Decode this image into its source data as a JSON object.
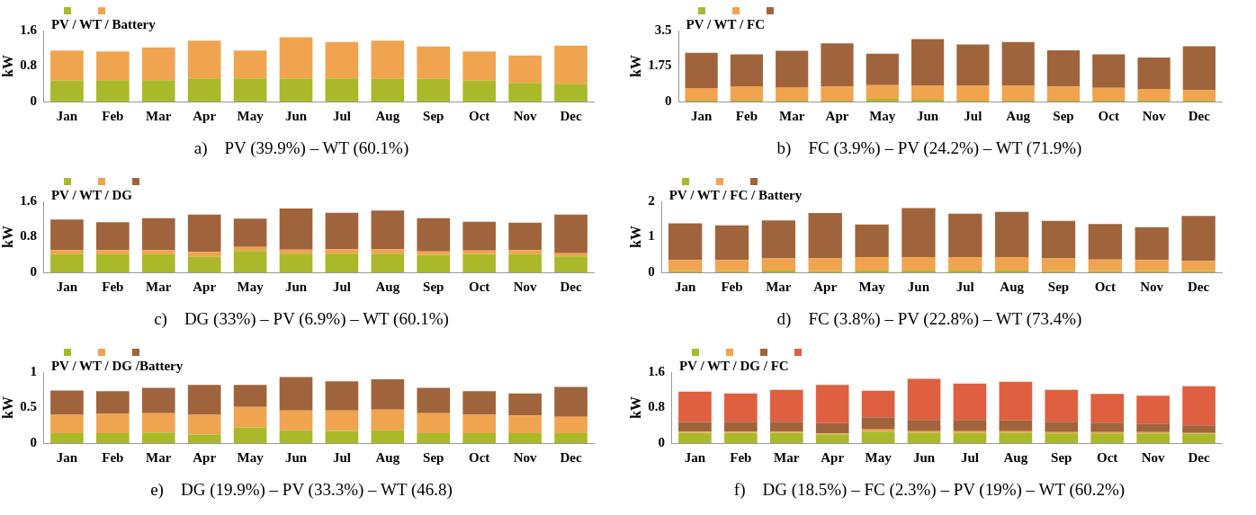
{
  "chart_data": [
    {
      "type": "bar",
      "stacked": true,
      "legend_title": "PV / WT / Battery",
      "ylabel": "kW",
      "ylim": [
        0,
        1.6
      ],
      "yticks": [
        0,
        0.8,
        1.6
      ],
      "annotations": [
        "a)    PV (39.9%) – WT (60.1%)"
      ],
      "categories": [
        "Jan",
        "Feb",
        "Mar",
        "Apr",
        "May",
        "Jun",
        "Jul",
        "Aug",
        "Sep",
        "Oct",
        "Nov",
        "Dec"
      ],
      "series": [
        {
          "color": "#a9b92a",
          "values": [
            0.47,
            0.48,
            0.48,
            0.52,
            0.52,
            0.52,
            0.52,
            0.51,
            0.51,
            0.47,
            0.42,
            0.4
          ]
        },
        {
          "color": "#f0a44f",
          "values": [
            0.68,
            0.65,
            0.74,
            0.85,
            0.63,
            0.93,
            0.82,
            0.86,
            0.73,
            0.66,
            0.62,
            0.86
          ]
        }
      ]
    },
    {
      "type": "bar",
      "stacked": true,
      "legend_title": "PV / WT / FC",
      "ylabel": "kW",
      "ylim": [
        0,
        3.5
      ],
      "yticks": [
        0,
        1.75,
        3.5
      ],
      "annotations": [
        "b)    FC (3.9%) – PV (24.2%) – WT (71.9%)"
      ],
      "categories": [
        "Jan",
        "Feb",
        "Mar",
        "Apr",
        "May",
        "Jun",
        "Jul",
        "Aug",
        "Sep",
        "Oct",
        "Nov",
        "Dec"
      ],
      "series": [
        {
          "color": "#a9b92a",
          "values": [
            0.04,
            0.04,
            0.04,
            0.04,
            0.13,
            0.09,
            0.04,
            0.04,
            0.04,
            0.04,
            0.04,
            0.04
          ]
        },
        {
          "color": "#f0a44f",
          "values": [
            0.63,
            0.71,
            0.67,
            0.7,
            0.68,
            0.68,
            0.73,
            0.73,
            0.7,
            0.64,
            0.58,
            0.53
          ]
        },
        {
          "color": "#a0643c",
          "values": [
            1.73,
            1.58,
            1.79,
            2.13,
            1.55,
            2.31,
            2.04,
            2.16,
            1.79,
            1.65,
            1.55,
            2.16
          ]
        }
      ]
    },
    {
      "type": "bar",
      "stacked": true,
      "legend_title": "PV / WT / DG",
      "ylabel": "kW",
      "ylim": [
        0,
        1.6
      ],
      "yticks": [
        0,
        0.8,
        1.6
      ],
      "annotations": [
        "c)    DG (33%) – PV (6.9%) – WT (60.1%)"
      ],
      "categories": [
        "Jan",
        "Feb",
        "Mar",
        "Apr",
        "May",
        "Jun",
        "Jul",
        "Aug",
        "Sep",
        "Oct",
        "Nov",
        "Dec"
      ],
      "series": [
        {
          "color": "#a9b92a",
          "values": [
            0.41,
            0.41,
            0.41,
            0.35,
            0.48,
            0.42,
            0.42,
            0.42,
            0.39,
            0.41,
            0.41,
            0.36
          ]
        },
        {
          "color": "#f0a44f",
          "values": [
            0.09,
            0.09,
            0.09,
            0.11,
            0.09,
            0.09,
            0.1,
            0.1,
            0.08,
            0.08,
            0.09,
            0.07
          ]
        },
        {
          "color": "#a0643c",
          "values": [
            0.69,
            0.63,
            0.72,
            0.84,
            0.64,
            0.93,
            0.82,
            0.87,
            0.75,
            0.65,
            0.62,
            0.87
          ]
        }
      ]
    },
    {
      "type": "bar",
      "stacked": true,
      "legend_title": "PV / WT / FC / Battery",
      "ylabel": "kW",
      "ylim": [
        0,
        2
      ],
      "yticks": [
        0,
        1,
        2
      ],
      "annotations": [
        "d)    FC (3.8%) – PV (22.8%) – WT (73.4%)"
      ],
      "categories": [
        "Jan",
        "Feb",
        "Mar",
        "Apr",
        "May",
        "Jun",
        "Jul",
        "Aug",
        "Sep",
        "Oct",
        "Nov",
        "Dec"
      ],
      "series": [
        {
          "color": "#a9b92a",
          "values": [
            0.03,
            0.03,
            0.05,
            0.03,
            0.05,
            0.05,
            0.05,
            0.05,
            0.03,
            0.03,
            0.03,
            0.03
          ]
        },
        {
          "color": "#f0a44f",
          "values": [
            0.32,
            0.32,
            0.34,
            0.36,
            0.38,
            0.38,
            0.38,
            0.38,
            0.36,
            0.33,
            0.32,
            0.29
          ]
        },
        {
          "color": "#a0643c",
          "values": [
            1.03,
            0.97,
            1.07,
            1.28,
            0.92,
            1.38,
            1.22,
            1.27,
            1.06,
            1.0,
            0.92,
            1.27
          ]
        }
      ]
    },
    {
      "type": "bar",
      "stacked": true,
      "legend_title": "PV / WT / DG /Battery",
      "ylabel": "kW",
      "ylim": [
        0,
        1
      ],
      "yticks": [
        0,
        0.5,
        1
      ],
      "annotations": [
        "e)    DG (19.9%) – PV (33.3%) – WT (46.8)"
      ],
      "categories": [
        "Jan",
        "Feb",
        "Mar",
        "Apr",
        "May",
        "Jun",
        "Jul",
        "Aug",
        "Sep",
        "Oct",
        "Nov",
        "Dec"
      ],
      "series": [
        {
          "color": "#a9b92a",
          "values": [
            0.14,
            0.14,
            0.15,
            0.12,
            0.22,
            0.18,
            0.17,
            0.18,
            0.14,
            0.14,
            0.14,
            0.14
          ]
        },
        {
          "color": "#f0a44f",
          "values": [
            0.26,
            0.27,
            0.27,
            0.28,
            0.29,
            0.28,
            0.29,
            0.29,
            0.28,
            0.26,
            0.25,
            0.23
          ]
        },
        {
          "color": "#a0643c",
          "values": [
            0.34,
            0.32,
            0.36,
            0.42,
            0.31,
            0.47,
            0.41,
            0.43,
            0.36,
            0.33,
            0.31,
            0.42
          ]
        }
      ]
    },
    {
      "type": "bar",
      "stacked": true,
      "legend_title": "PV / WT / DG / FC",
      "ylabel": "kW",
      "ylim": [
        0,
        1.6
      ],
      "yticks": [
        0,
        0.8,
        1.6
      ],
      "annotations": [
        "f)    DG (18.5%) – FC (2.3%) – PV (19%) – WT (60.2%)"
      ],
      "categories": [
        "Jan",
        "Feb",
        "Mar",
        "Apr",
        "May",
        "Jun",
        "Jul",
        "Aug",
        "Sep",
        "Oct",
        "Nov",
        "Dec"
      ],
      "series": [
        {
          "color": "#a9b92a",
          "values": [
            0.23,
            0.23,
            0.23,
            0.2,
            0.26,
            0.23,
            0.23,
            0.23,
            0.22,
            0.22,
            0.22,
            0.21
          ]
        },
        {
          "color": "#f0a44f",
          "values": [
            0.03,
            0.03,
            0.03,
            0.02,
            0.05,
            0.04,
            0.04,
            0.04,
            0.03,
            0.03,
            0.03,
            0.02
          ]
        },
        {
          "color": "#a0643c",
          "values": [
            0.21,
            0.22,
            0.22,
            0.23,
            0.27,
            0.25,
            0.25,
            0.24,
            0.23,
            0.21,
            0.19,
            0.17
          ]
        },
        {
          "color": "#de6040",
          "values": [
            0.69,
            0.64,
            0.72,
            0.86,
            0.6,
            0.93,
            0.82,
            0.87,
            0.72,
            0.65,
            0.63,
            0.88
          ]
        }
      ]
    }
  ]
}
